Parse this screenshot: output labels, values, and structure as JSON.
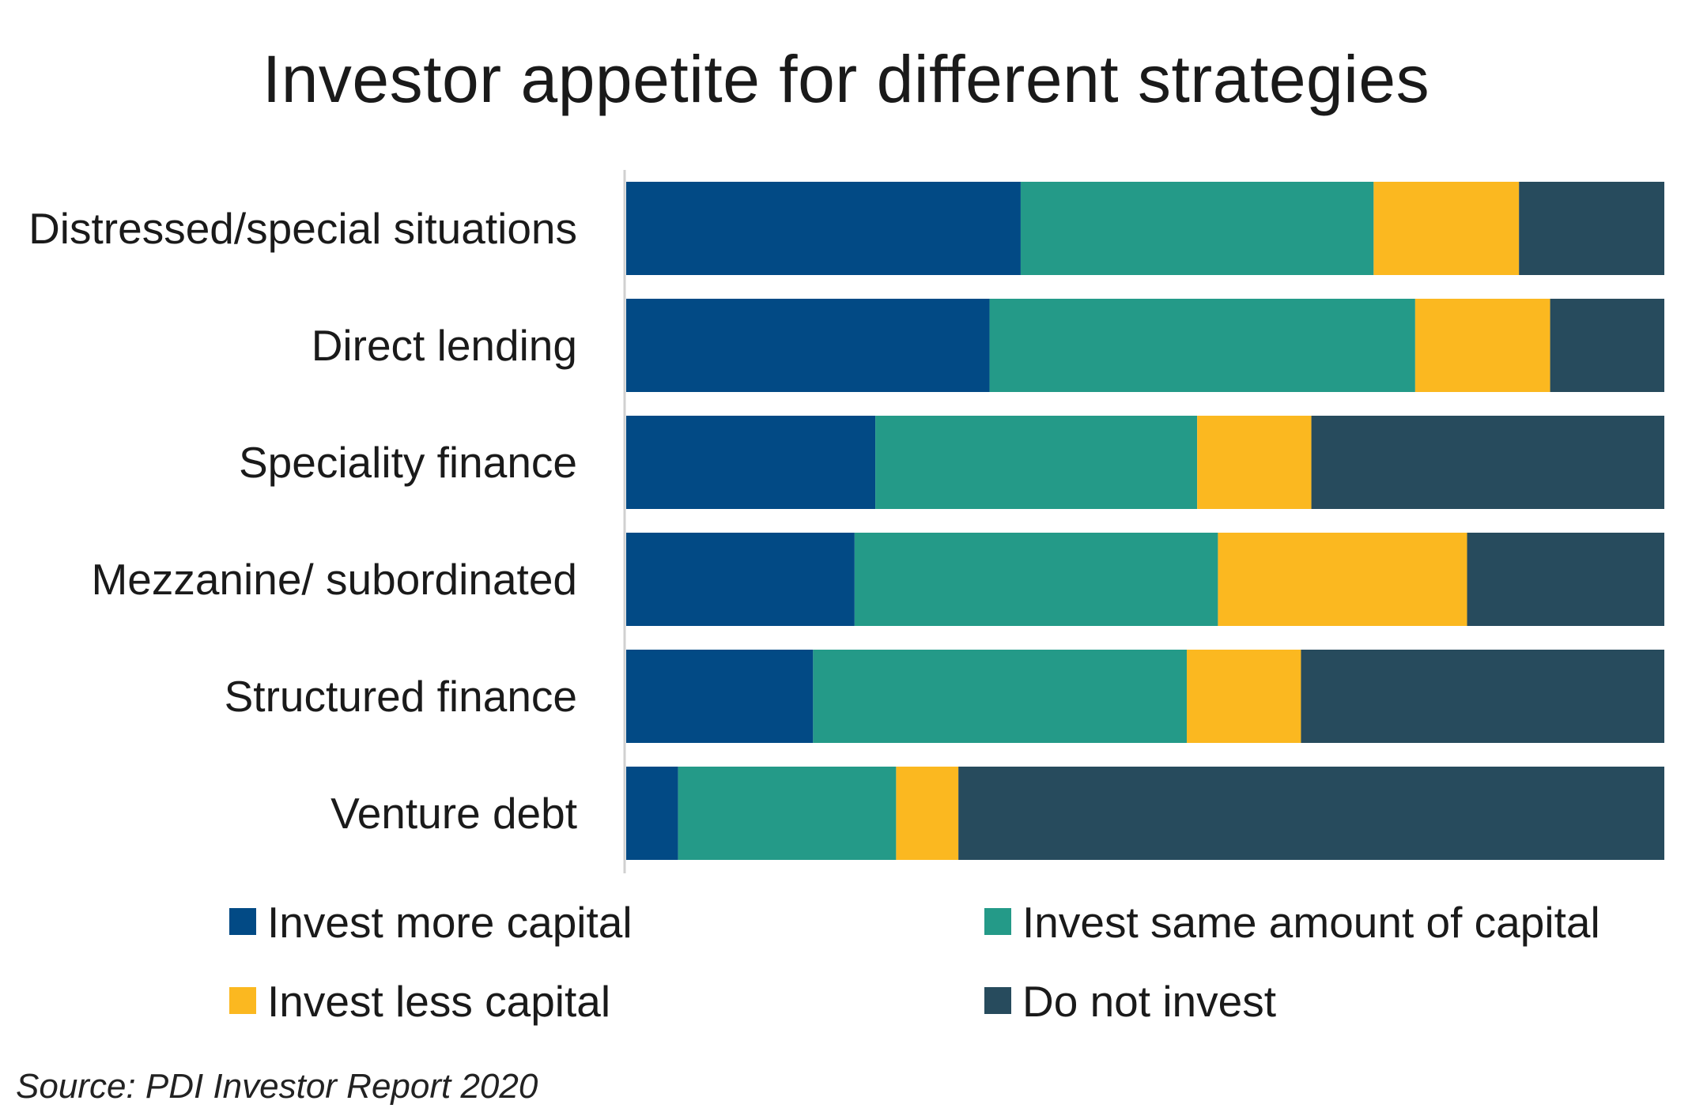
{
  "chart_data": {
    "type": "bar",
    "orientation": "horizontal",
    "stacked": true,
    "normalized_percent": true,
    "title": "Investor appetite for different strategies",
    "xlabel": "",
    "ylabel": "",
    "xlim": [
      0,
      100
    ],
    "grid": false,
    "legend_position": "bottom",
    "categories": [
      "Distressed/special situations",
      "Direct lending",
      "Speciality finance",
      "Mezzanine/ subordinated",
      "Structured finance",
      "Venture debt"
    ],
    "series": [
      {
        "name": "Invest more capital",
        "color": "#024a85",
        "values": [
          38,
          35,
          24,
          22,
          18,
          5
        ]
      },
      {
        "name": "Invest same amount of capital",
        "color": "#249a88",
        "values": [
          34,
          41,
          31,
          35,
          36,
          21
        ]
      },
      {
        "name": "Invest less capital",
        "color": "#fbb820",
        "values": [
          14,
          13,
          11,
          24,
          11,
          6
        ]
      },
      {
        "name": "Do not invest",
        "color": "#274b5d",
        "values": [
          14,
          11,
          34,
          19,
          35,
          68
        ]
      }
    ]
  },
  "source": "Source: PDI Investor Report 2020"
}
